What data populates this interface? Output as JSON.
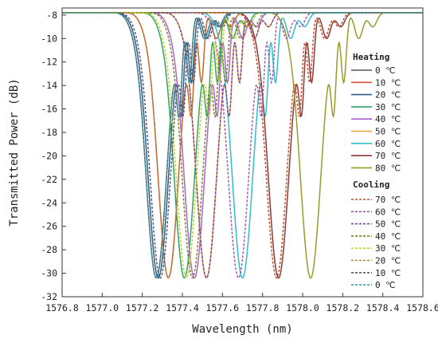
{
  "chart_data": {
    "type": "line",
    "xlabel": "Wavelength (nm)",
    "ylabel": "Transmitted Power (dB)",
    "xlim": [
      1576.8,
      1578.6
    ],
    "ylim": [
      -32,
      -7.4
    ],
    "x_ticks": [
      "1576.8",
      "1577.0",
      "1577.2",
      "1577.4",
      "1577.6",
      "1577.8",
      "1578.0",
      "1578.2",
      "1578.4",
      "1578.6"
    ],
    "y_ticks": [
      "-8",
      "-10",
      "-12",
      "-14",
      "-16",
      "-18",
      "-20",
      "-22",
      "-24",
      "-26",
      "-28",
      "-30",
      "-32"
    ],
    "baseline_db": -7.8,
    "dip_min_db": -30.4,
    "grid": false,
    "legend_position": "right",
    "heating": {
      "title": "Heating",
      "series": [
        {
          "name": "0 ℃",
          "center": 1577.27,
          "color": "#555555"
        },
        {
          "name": "10 ℃",
          "center": 1577.33,
          "color": "#d9503f"
        },
        {
          "name": "20 ℃",
          "center": 1577.28,
          "color": "#2b5c8a"
        },
        {
          "name": "30 ℃",
          "center": 1577.41,
          "color": "#2fa36b"
        },
        {
          "name": "40 ℃",
          "center": 1577.46,
          "color": "#b05fd6"
        },
        {
          "name": "50 ℃",
          "center": 1577.52,
          "color": "#e8a33a"
        },
        {
          "name": "60 ℃",
          "center": 1577.7,
          "color": "#2fbfc7"
        },
        {
          "name": "70 ℃",
          "center": 1577.88,
          "color": "#8b3a3a"
        },
        {
          "name": "80 ℃",
          "center": 1578.04,
          "color": "#9a9a2a"
        }
      ]
    },
    "cooling": {
      "title": "Cooling",
      "series": [
        {
          "name": "70 ℃",
          "center": 1577.87,
          "color": "#c0532e"
        },
        {
          "name": "60 ℃",
          "center": 1577.68,
          "color": "#9b59b6"
        },
        {
          "name": "50 ℃",
          "center": 1577.52,
          "color": "#7a3fa0"
        },
        {
          "name": "40 ℃",
          "center": 1577.45,
          "color": "#6e8a1a"
        },
        {
          "name": "30 ℃",
          "center": 1577.42,
          "color": "#cccc22"
        },
        {
          "name": "20 ℃",
          "center": 1577.33,
          "color": "#b08a2e"
        },
        {
          "name": "10 ℃",
          "center": 1577.29,
          "color": "#555577"
        },
        {
          "name": "0 ℃",
          "center": 1577.27,
          "color": "#3aa0a8"
        }
      ]
    }
  }
}
